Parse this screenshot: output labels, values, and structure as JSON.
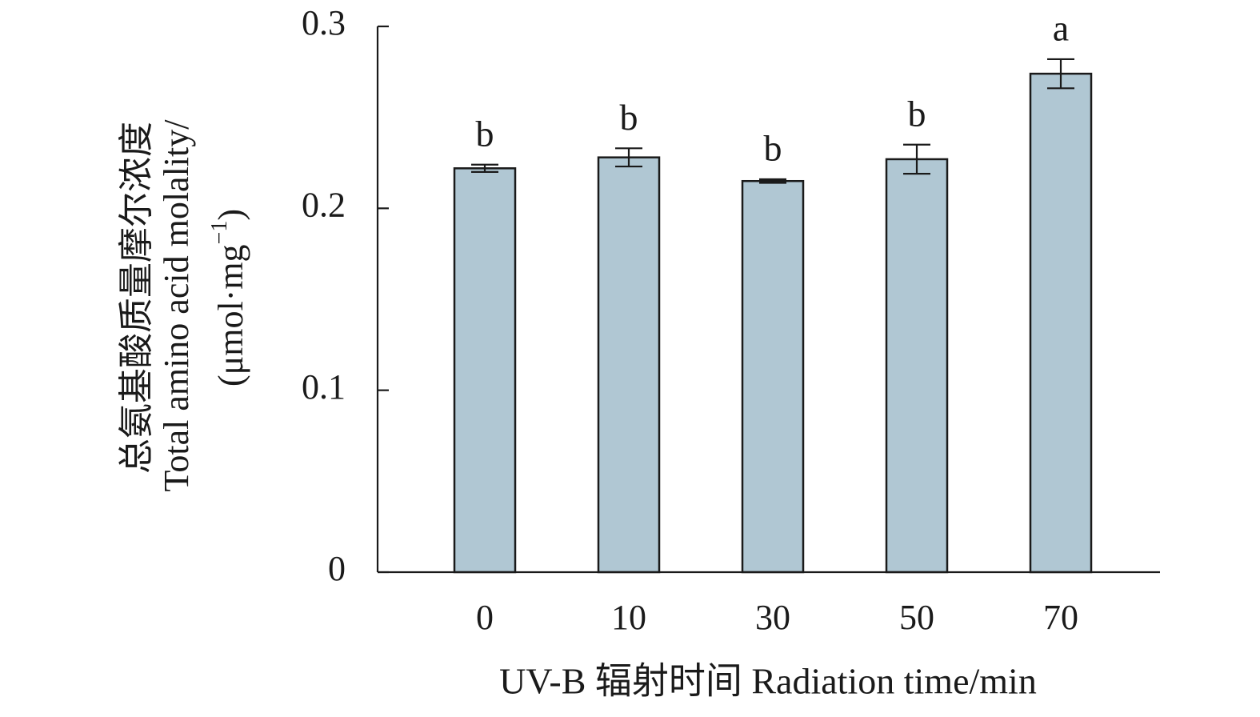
{
  "chart_data": {
    "type": "bar",
    "categories": [
      "0",
      "10",
      "30",
      "50",
      "70"
    ],
    "values": [
      0.222,
      0.228,
      0.215,
      0.227,
      0.274
    ],
    "errors": [
      0.002,
      0.005,
      0.001,
      0.008,
      0.008
    ],
    "significance": [
      "b",
      "b",
      "b",
      "b",
      "a"
    ],
    "title": "",
    "xlabel": "UV-B 辐射时间 Radiation time/min",
    "ylabel_lines": [
      "总氨基酸质量摩尔浓度",
      "Total amino acid molality/",
      "(μmol·mg",
      "−1",
      ")"
    ],
    "ylim": [
      0,
      0.3
    ],
    "yticks": [
      0,
      0.1,
      0.2,
      0.3
    ],
    "ytick_labels": [
      "0",
      "0.1",
      "0.2",
      "0.3"
    ],
    "grid": false,
    "legend": "none",
    "bar_color": "#b0c7d3",
    "edge_color": "#1a1a1a"
  }
}
